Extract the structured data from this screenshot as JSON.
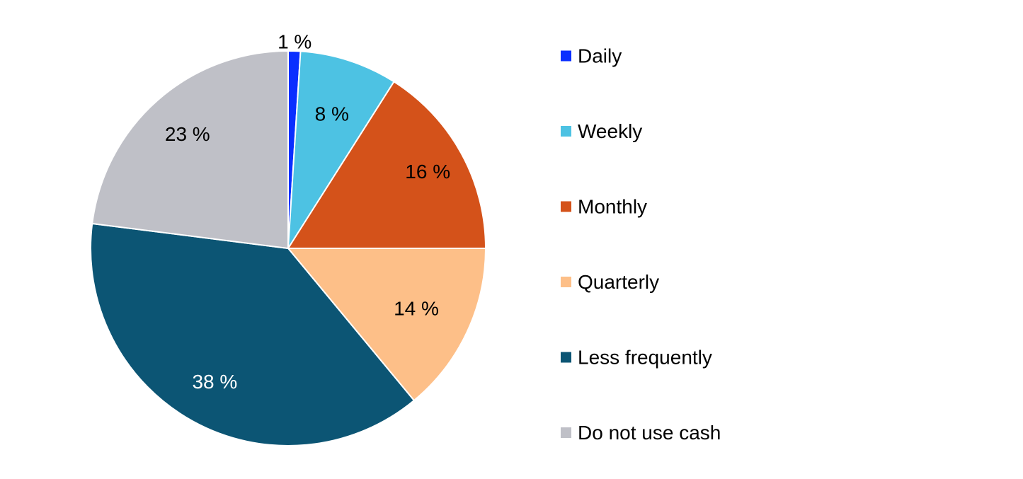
{
  "chart_data": {
    "type": "pie",
    "title": "",
    "categories": [
      "Daily",
      "Weekly",
      "Monthly",
      "Quarterly",
      "Less frequently",
      "Do not use cash"
    ],
    "values": [
      1,
      8,
      16,
      14,
      38,
      23
    ],
    "unit": "%",
    "data_labels": [
      "1 %",
      "8 %",
      "16 %",
      "14 %",
      "38 %",
      "23 %"
    ],
    "colors": [
      "#0a2fff",
      "#4dc2e3",
      "#d4521a",
      "#fdbf88",
      "#0c5574",
      "#bfc0c7"
    ],
    "label_colors": [
      "#000000",
      "#000000",
      "#000000",
      "#000000",
      "#ffffff",
      "#000000"
    ],
    "start_angle_deg": 0,
    "direction": "clockwise",
    "legend": {
      "position": "right",
      "entries": [
        "Daily",
        "Weekly",
        "Monthly",
        "Quarterly",
        "Less frequently",
        "Do not use cash"
      ]
    }
  }
}
